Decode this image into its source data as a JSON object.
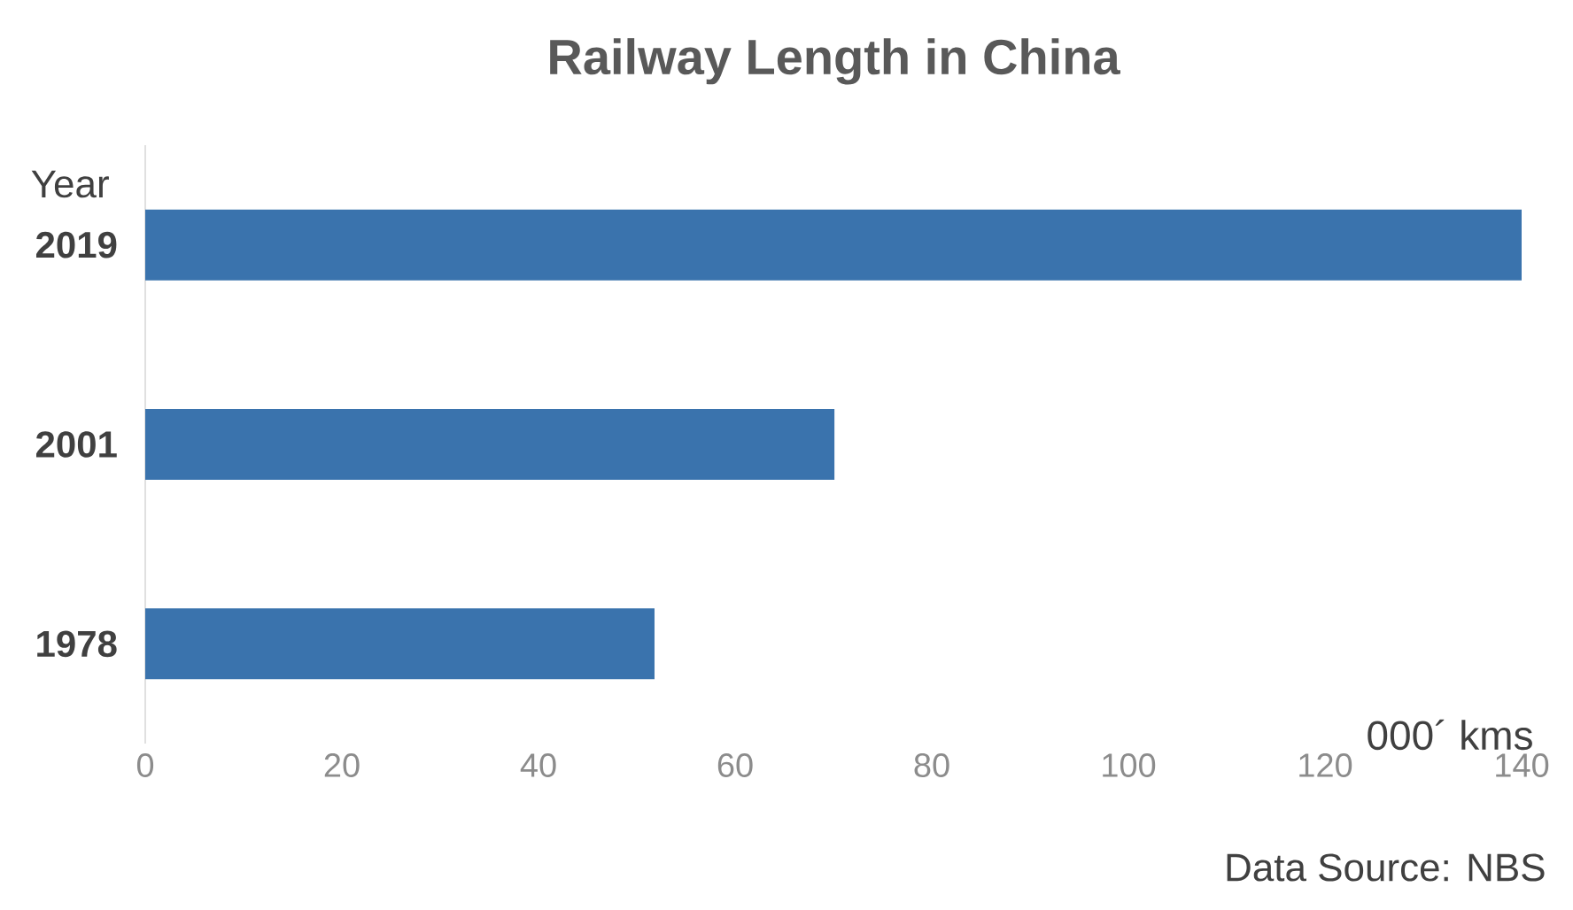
{
  "chart_data": {
    "type": "bar",
    "orientation": "horizontal",
    "title": "Railway Length in China",
    "xlabel": "000´ kms",
    "ylabel": "Year",
    "categories": [
      "2019",
      "2001",
      "1978"
    ],
    "values": [
      140,
      70.1,
      51.8
    ],
    "color": "#3a73ad",
    "xlim": [
      0,
      140
    ],
    "xticks": [
      0,
      20,
      40,
      60,
      80,
      100,
      120,
      140
    ],
    "annotations": [
      "Data Source: NBS"
    ]
  }
}
